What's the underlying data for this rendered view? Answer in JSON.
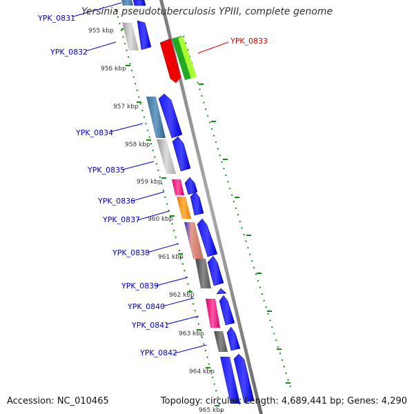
{
  "title": "Yersinia pseudotuberculosis YPIII, complete genome",
  "footer": {
    "accession": "Accession: NC_010465",
    "summary": "Topology: circular; Length: 4,689,441 bp; Genes: 4,290"
  },
  "scale_labels": [
    "955 kbp",
    "956 kbp",
    "957 kbp",
    "958 kbp",
    "959 kbp",
    "960 kbp",
    "961 kbp",
    "962 kbp",
    "963 kbp",
    "964 kbp",
    "965 kbp"
  ],
  "genes": [
    {
      "locus": "YPK_0831",
      "color": "#0000cc"
    },
    {
      "locus": "YPK_0832",
      "color": "#0000cc"
    },
    {
      "locus": "YPK_0833",
      "color": "#dd0000"
    },
    {
      "locus": "YPK_0834",
      "color": "#0000cc"
    },
    {
      "locus": "YPK_0835",
      "color": "#0000cc"
    },
    {
      "locus": "YPK_0836",
      "color": "#0000cc"
    },
    {
      "locus": "YPK_0837",
      "color": "#0000cc"
    },
    {
      "locus": "YPK_0838",
      "color": "#0000cc"
    },
    {
      "locus": "YPK_0839",
      "color": "#0000cc"
    },
    {
      "locus": "YPK_0840",
      "color": "#0000cc"
    },
    {
      "locus": "YPK_0841",
      "color": "#0000cc"
    },
    {
      "locus": "YPK_0842",
      "color": "#0000cc"
    }
  ]
}
